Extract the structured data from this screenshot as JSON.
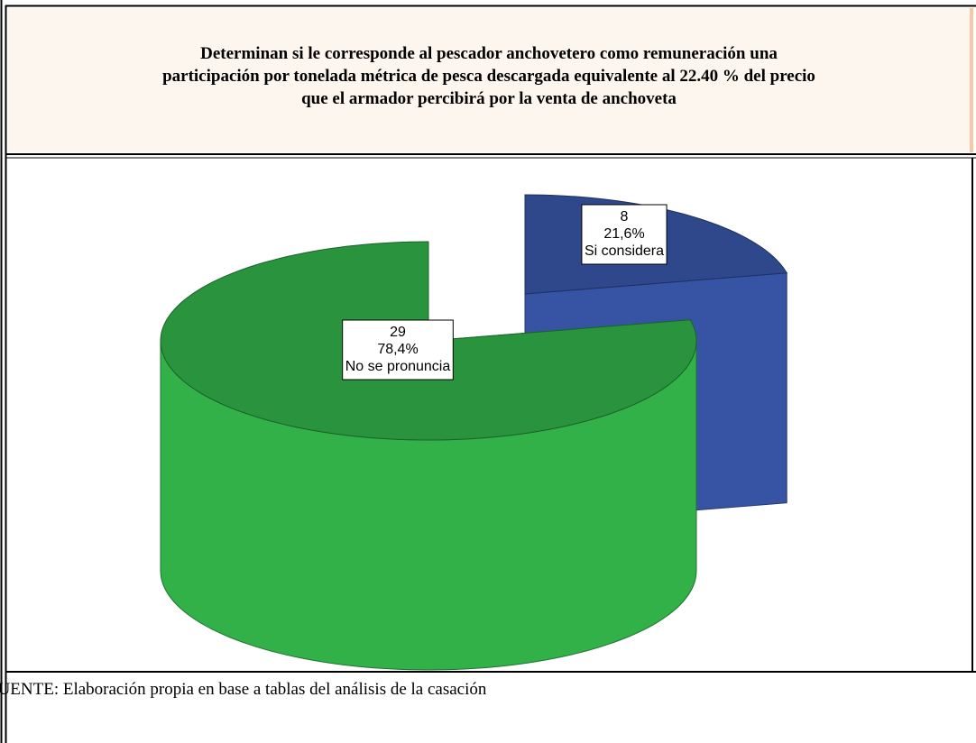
{
  "chart_data": {
    "type": "pie",
    "title": [
      "Determinan si le corresponde al pescador anchovetero como remuneración una",
      "participación por tonelada métrica de pesca descargada equivalente al 22.40 % del precio",
      "que el armador percibirá por la venta de anchoveta"
    ],
    "categories": [
      "Si considera",
      "No se pronuncia"
    ],
    "values": [
      8,
      29
    ],
    "percents": [
      21.6,
      78.4
    ],
    "percent_labels": [
      "21,6%",
      "78,4%"
    ],
    "colors": [
      "#34509c",
      "#2ea444"
    ],
    "source": "FUENTE: Elaboración propia en base a tablas del  análisis de la casación"
  }
}
